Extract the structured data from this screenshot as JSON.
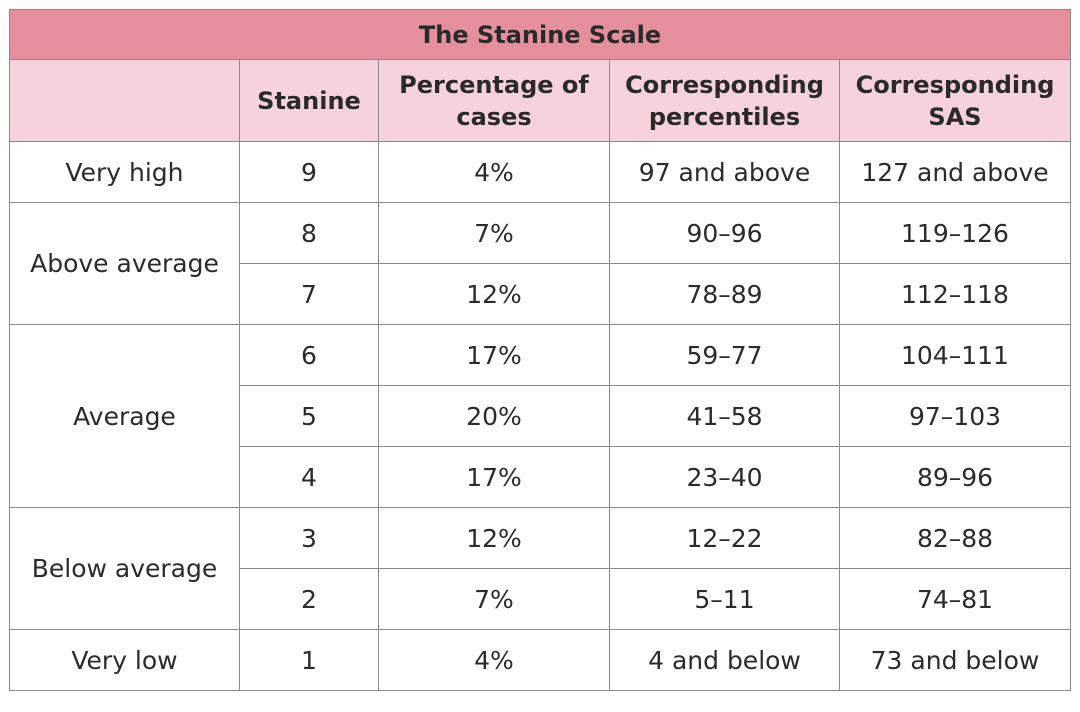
{
  "title": "The Stanine Scale",
  "headers": {
    "band": "",
    "stanine": "Stanine",
    "percentage": "Percentage of cases",
    "percentiles": "Corresponding percentiles",
    "sas": "Corresponding SAS"
  },
  "bands": [
    {
      "label": "Very high",
      "rows": [
        {
          "stanine": "9",
          "percentage": "4%",
          "percentiles": "97 and above",
          "sas": "127 and above"
        }
      ]
    },
    {
      "label": "Above average",
      "rows": [
        {
          "stanine": "8",
          "percentage": "7%",
          "percentiles": "90–96",
          "sas": "119–126"
        },
        {
          "stanine": "7",
          "percentage": "12%",
          "percentiles": "78–89",
          "sas": "112–118"
        }
      ]
    },
    {
      "label": "Average",
      "rows": [
        {
          "stanine": "6",
          "percentage": "17%",
          "percentiles": "59–77",
          "sas": "104–111"
        },
        {
          "stanine": "5",
          "percentage": "20%",
          "percentiles": "41–58",
          "sas": "97–103"
        },
        {
          "stanine": "4",
          "percentage": "17%",
          "percentiles": "23–40",
          "sas": "89–96"
        }
      ]
    },
    {
      "label": "Below average",
      "rows": [
        {
          "stanine": "3",
          "percentage": "12%",
          "percentiles": "12–22",
          "sas": "82–88"
        },
        {
          "stanine": "2",
          "percentage": "7%",
          "percentiles": "5–11",
          "sas": "74–81"
        }
      ]
    },
    {
      "label": "Very low",
      "rows": [
        {
          "stanine": "1",
          "percentage": "4%",
          "percentiles": "4 and below",
          "sas": "73 and below"
        }
      ]
    }
  ],
  "colors": {
    "title_bg": "#e58f9d",
    "header_bg": "#f6d3da",
    "border": "#8a8a8a"
  }
}
